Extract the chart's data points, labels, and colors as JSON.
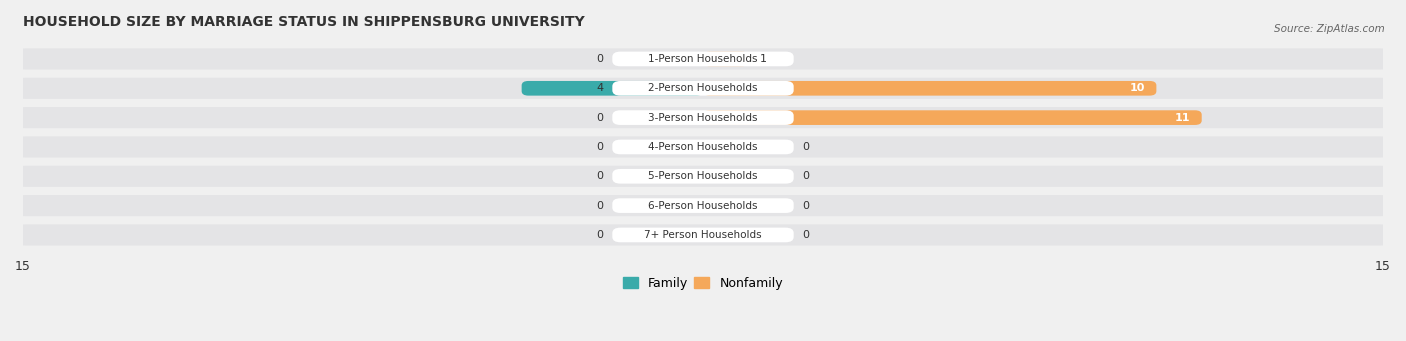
{
  "title": "HOUSEHOLD SIZE BY MARRIAGE STATUS IN SHIPPENSBURG UNIVERSITY",
  "source": "Source: ZipAtlas.com",
  "categories": [
    "7+ Person Households",
    "6-Person Households",
    "5-Person Households",
    "4-Person Households",
    "3-Person Households",
    "2-Person Households",
    "1-Person Households"
  ],
  "family_values": [
    0,
    0,
    0,
    0,
    0,
    4,
    0
  ],
  "nonfamily_values": [
    0,
    0,
    0,
    0,
    11,
    10,
    1
  ],
  "family_color": "#3aabaa",
  "nonfamily_color": "#f5a85a",
  "nonfamily_color_light": "#f5c8a0",
  "xlim": 15,
  "bg_color": "#f0f0f0",
  "row_bg": "#e4e4e6",
  "label_bg": "#ffffff"
}
